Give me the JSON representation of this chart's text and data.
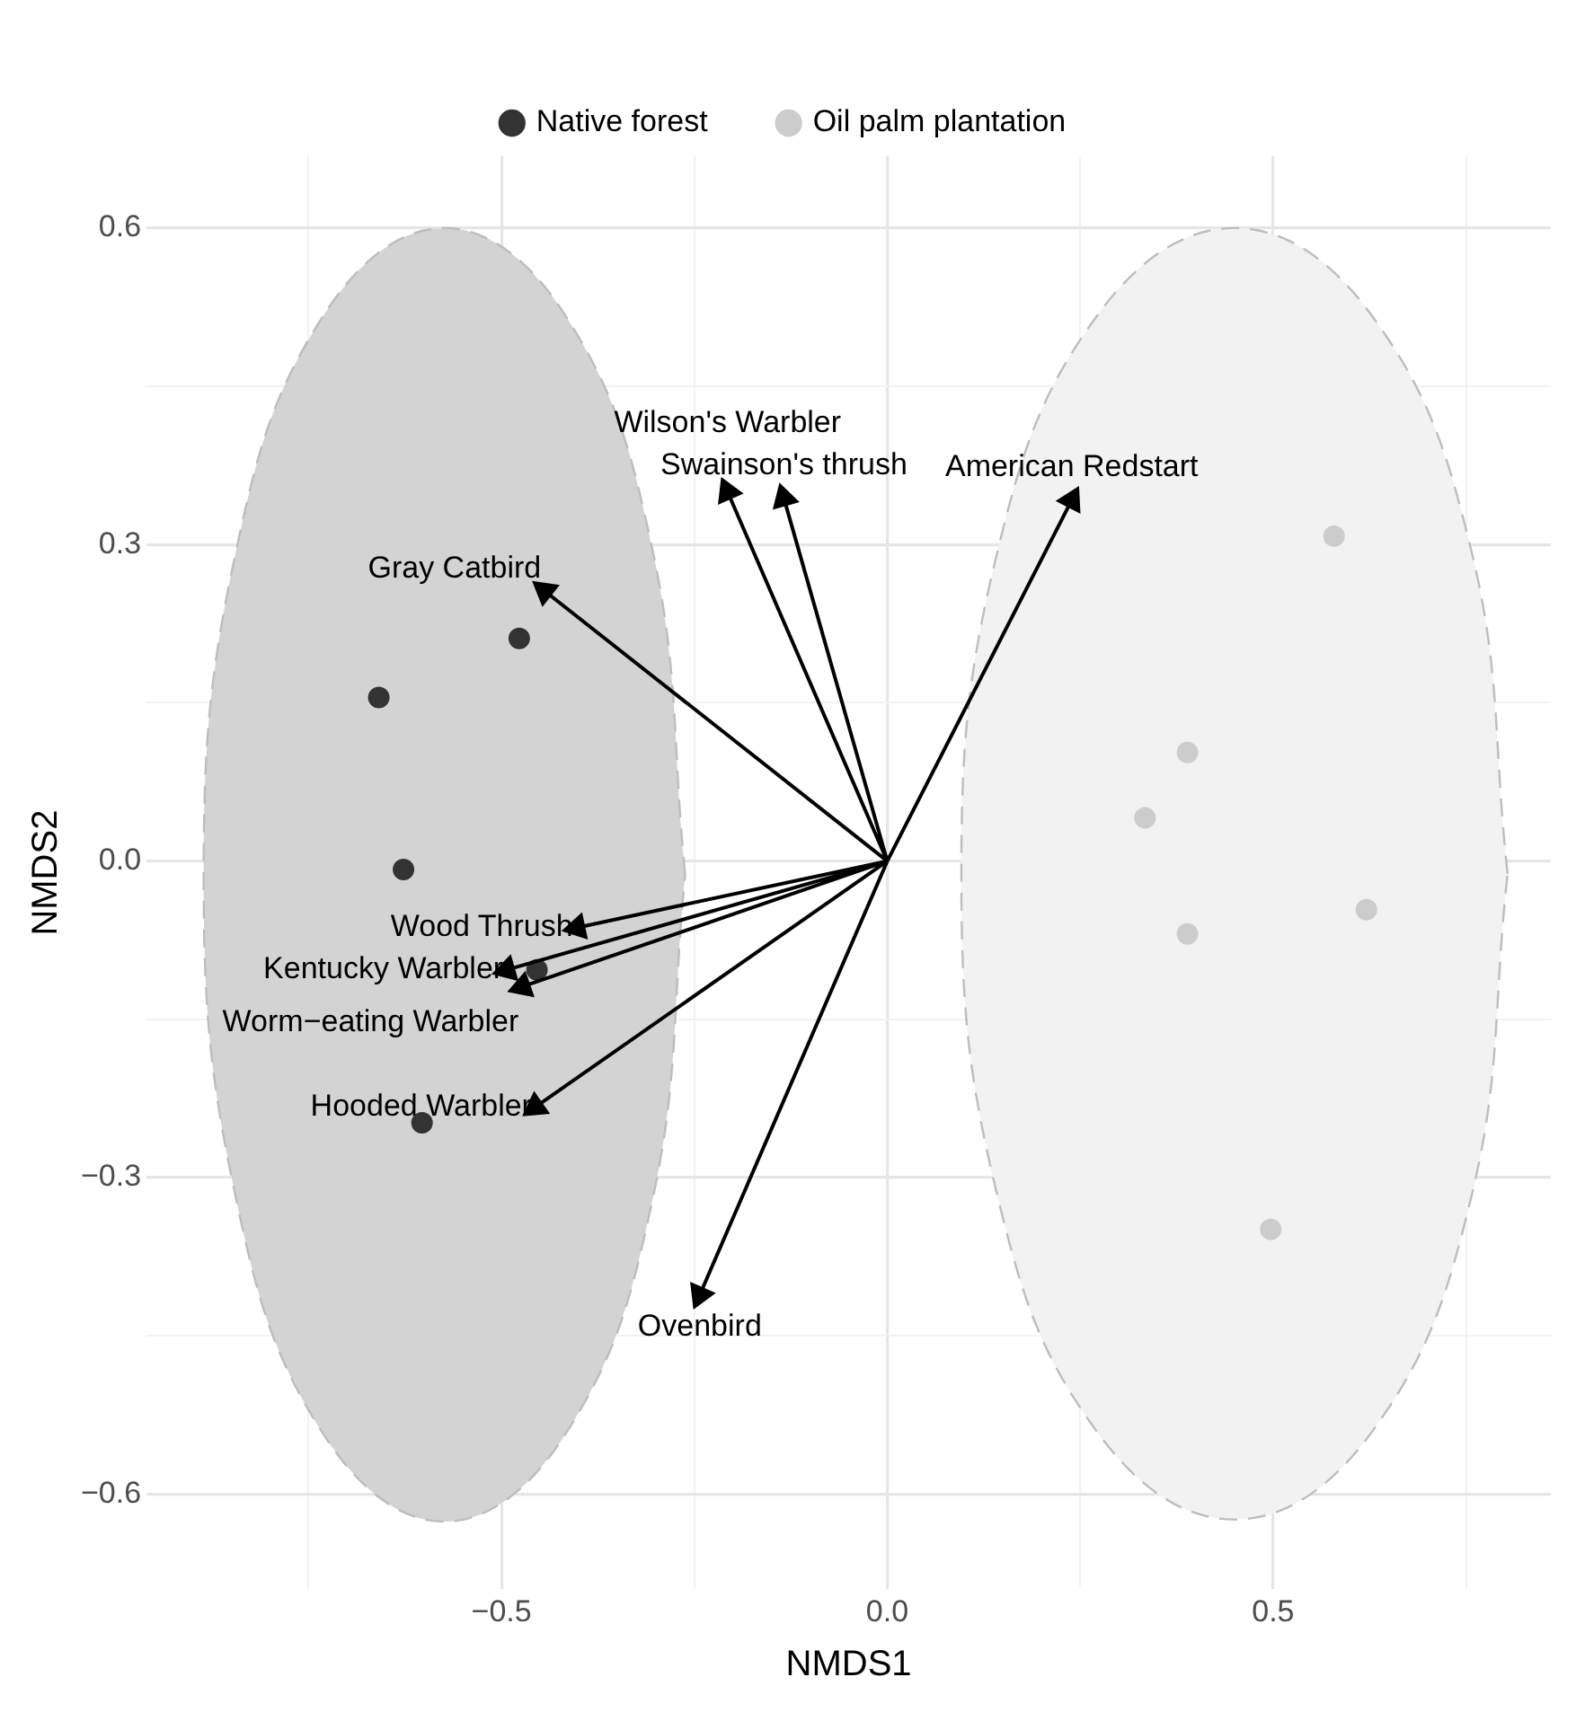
{
  "chart_data": {
    "type": "scatter",
    "xlabel": "NMDS1",
    "ylabel": "NMDS2",
    "legend": "top",
    "grid": true,
    "xlim": [
      -0.96,
      0.86
    ],
    "ylim": [
      -0.69,
      0.668
    ],
    "xticks": [
      {
        "value": -0.75,
        "label": null
      },
      {
        "value": -0.5,
        "label": "−0.5"
      },
      {
        "value": -0.25,
        "label": null
      },
      {
        "value": 0,
        "label": "0.0"
      },
      {
        "value": 0.25,
        "label": null
      },
      0.5,
      {
        "value": 0.75,
        "label": null
      }
    ],
    "yticks": [
      {
        "value": -0.6,
        "label": "−0.6"
      },
      {
        "value": -0.45,
        "label": null
      },
      {
        "value": -0.3,
        "label": "−0.3"
      },
      {
        "value": -0.15,
        "label": null
      },
      {
        "value": 0,
        "label": "0.0"
      },
      {
        "value": 0.15,
        "label": null
      },
      0.3,
      {
        "value": 0.45,
        "label": null
      },
      0.6
    ],
    "series": [
      {
        "type": "area",
        "color": "#d3d3d3",
        "line_style": "dashed",
        "x": [
          -0.262,
          -0.304,
          -0.418,
          -0.574,
          -0.73,
          -0.844,
          -0.886,
          -0.844,
          -0.73,
          -0.574,
          -0.418,
          -0.304
        ],
        "values": [
          -0.013,
          0.294,
          0.518,
          0.6,
          0.518,
          0.294,
          -0.013,
          -0.32,
          -0.544,
          -0.626,
          -0.544,
          -0.32
        ]
      },
      {
        "type": "area",
        "color": "#f2f2f2",
        "line_style": "dashed",
        "x": [
          0.804,
          0.757,
          0.627,
          0.45,
          0.273,
          0.143,
          0.096,
          0.143,
          0.273,
          0.45,
          0.627,
          0.757
        ],
        "values": [
          -0.012,
          0.294,
          0.518,
          0.6,
          0.518,
          0.294,
          -0.012,
          -0.318,
          -0.542,
          -0.624,
          -0.542,
          -0.318
        ]
      },
      {
        "name": "Native forest",
        "color": "#333333",
        "marker": "circle",
        "x": [
          -0.477,
          -0.659,
          -0.627,
          -0.603,
          -0.454
        ],
        "values": [
          0.211,
          0.155,
          -0.008,
          -0.248,
          -0.103
        ]
      },
      {
        "name": "Oil palm plantation",
        "color": "#cccccc",
        "marker": "circle",
        "x": [
          0.579,
          0.389,
          0.334,
          0.621,
          0.389,
          0.497
        ],
        "values": [
          0.308,
          0.103,
          0.041,
          -0.046,
          -0.069,
          -0.349
        ]
      },
      {
        "type": "line",
        "color": "#000000",
        "marker": "triangle",
        "x": [
          0,
          0.239,
          null,
          0,
          -0.134,
          null,
          0,
          -0.207,
          null,
          0,
          -0.444,
          null,
          0,
          -0.402,
          null,
          0,
          -0.493,
          null,
          0,
          -0.473,
          null,
          0,
          -0.456,
          null,
          0,
          -0.243
        ],
        "values": [
          0,
          0.342,
          null,
          0,
          0.344,
          null,
          0,
          0.35,
          null,
          0,
          0.256,
          null,
          0,
          -0.063,
          null,
          0,
          -0.103,
          null,
          0,
          -0.119,
          null,
          0,
          -0.233,
          null,
          0,
          -0.411
        ]
      }
    ],
    "annotations": [
      {
        "text": "American Redstart",
        "x": 0.239,
        "y": 0.342
      },
      {
        "text": "Swainson's thrush",
        "x": -0.134,
        "y": 0.344
      },
      {
        "text": "Wilson's Warbler",
        "x": -0.207,
        "y": 0.35
      },
      {
        "text": "Gray Catbird",
        "x": -0.444,
        "y": 0.256
      },
      {
        "text": "Wood Thrush",
        "x": -0.402,
        "y": -0.063
      },
      {
        "text": "Kentucky Warbler",
        "x": -0.493,
        "y": -0.103
      },
      {
        "text": "Worm−eating Warbler",
        "x": -0.473,
        "y": -0.119
      },
      {
        "text": "Hooded Warbler",
        "x": -0.456,
        "y": -0.233
      },
      {
        "text": "Ovenbird",
        "x": -0.243,
        "y": -0.411
      }
    ]
  }
}
